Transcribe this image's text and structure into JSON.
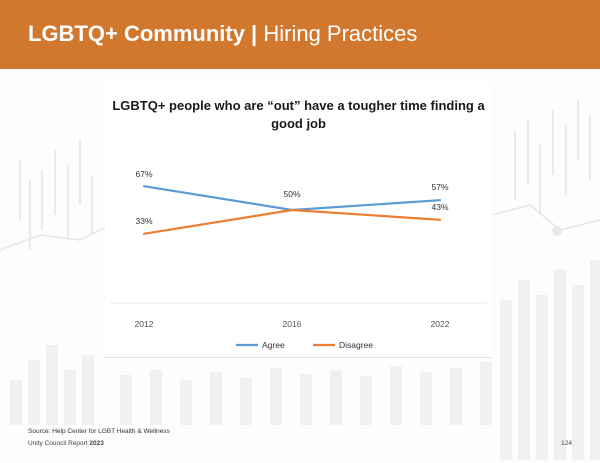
{
  "header": {
    "title_bold": "LGBTQ+ Community |",
    "title_light": "Hiring Practices",
    "bg_color": "#d2772e"
  },
  "chart_data": {
    "type": "line",
    "title": "LGBTQ+ people who are “out” have a tougher time finding a good job",
    "categories": [
      "2012",
      "2016",
      "2022"
    ],
    "series": [
      {
        "name": "Agree",
        "values": [
          67,
          50,
          57
        ],
        "labels": [
          "67%",
          "50%",
          "57%"
        ],
        "color": "#5b9bd5"
      },
      {
        "name": "Disagree",
        "values": [
          33,
          50,
          43
        ],
        "labels": [
          "33%",
          "",
          "43%"
        ],
        "color": "#ed7d31"
      }
    ],
    "ylim": [
      0,
      100
    ],
    "grid": false,
    "legend": "bottom"
  },
  "footer": {
    "source": "Source: Help Center for LGBT Health & Wellness",
    "report_prefix": "Unity Council Report",
    "report_year": "2023",
    "page_number": "124"
  }
}
